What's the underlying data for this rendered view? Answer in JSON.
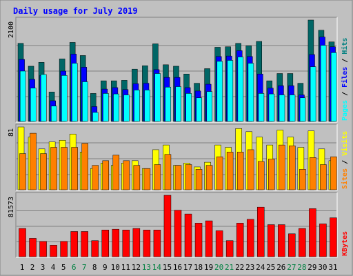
{
  "chart_data": {
    "type": "bar",
    "title": "Daily usage for July 2019",
    "categories": [
      "1",
      "2",
      "3",
      "4",
      "5",
      "6",
      "7",
      "8",
      "9",
      "10",
      "11",
      "12",
      "13",
      "14",
      "15",
      "16",
      "17",
      "18",
      "19",
      "20",
      "21",
      "22",
      "23",
      "24",
      "25",
      "26",
      "27",
      "28",
      "29",
      "30",
      "31"
    ],
    "weekend_days": [
      "6",
      "7",
      "13",
      "14",
      "20",
      "21",
      "27",
      "28"
    ],
    "panels": [
      {
        "id": "hits",
        "ymax_label": "2100",
        "ymax": 2100,
        "legend": [
          {
            "text": "Pages",
            "color": "#00ffff"
          },
          {
            "text": " / ",
            "color": "#000000"
          },
          {
            "text": "Files",
            "color": "#0000ff"
          },
          {
            "text": " / ",
            "color": "#000000"
          },
          {
            "text": "Hits",
            "color": "#008080"
          }
        ],
        "series": [
          {
            "name": "Hits",
            "color": "#006666",
            "values": [
              1620,
              1150,
              1230,
              620,
              1300,
              1640,
              1370,
              590,
              850,
              850,
              860,
              1090,
              1160,
              1610,
              1180,
              1150,
              990,
              800,
              1100,
              1540,
              1550,
              1620,
              1570,
              1660,
              850,
              1000,
              1000,
              800,
              2100,
              1890,
              1650
            ]
          },
          {
            "name": "Files",
            "color": "#0000ff",
            "values": [
              1290,
              880,
              960,
              440,
              1050,
              1400,
              1130,
              320,
              680,
              710,
              670,
              790,
              800,
              1080,
              920,
              920,
              710,
              640,
              780,
              1350,
              1360,
              1470,
              1350,
              990,
              700,
              750,
              750,
              560,
              1390,
              1750,
              1550
            ]
          },
          {
            "name": "Pages",
            "color": "#00ffff",
            "values": [
              1050,
              700,
              980,
              330,
              960,
              1210,
              830,
              200,
              590,
              580,
              560,
              660,
              660,
              1000,
              720,
              730,
              590,
              500,
              630,
              1250,
              1270,
              1340,
              1210,
              590,
              580,
              560,
              560,
              500,
              1140,
              1580,
              1430
            ]
          }
        ]
      },
      {
        "id": "visits",
        "ymax_label": "81",
        "ymax": 81,
        "legend": [
          {
            "text": "Sites",
            "color": "#ff8000"
          },
          {
            "text": " / ",
            "color": "#000000"
          },
          {
            "text": "Visits",
            "color": "#ffff00"
          }
        ],
        "series": [
          {
            "name": "Visits",
            "color": "#ffff00",
            "values": [
              81,
              68,
              53,
              62,
              64,
              72,
              49,
              28,
              35,
              32,
              35,
              38,
              28,
              52,
              58,
              32,
              35,
              30,
              36,
              58,
              55,
              79,
              75,
              68,
              58,
              77,
              68,
              55,
              76,
              53,
              38
            ]
          },
          {
            "name": "Sites",
            "color": "#ff8000",
            "values": [
              47,
              73,
              47,
              55,
              55,
              55,
              60,
              32,
              38,
              45,
              38,
              32,
              28,
              33,
              46,
              32,
              33,
              27,
              32,
              43,
              49,
              49,
              52,
              37,
              40,
              58,
              57,
              27,
              42,
              33,
              43
            ]
          }
        ]
      },
      {
        "id": "kbytes",
        "ymax_label": "81573",
        "ymax": 81573,
        "legend": [
          {
            "text": "KBytes",
            "color": "#ff0000"
          }
        ],
        "series": [
          {
            "name": "KBytes",
            "color": "#ff0000",
            "values": [
              38000,
              25000,
              21000,
              16000,
              21000,
              34000,
              34000,
              22000,
              36000,
              37000,
              36000,
              38000,
              36000,
              36000,
              81573,
              62000,
              57000,
              45000,
              48000,
              35000,
              22000,
              45000,
              50000,
              66000,
              43000,
              43000,
              31000,
              38000,
              64000,
              44000,
              52000
            ]
          }
        ]
      }
    ]
  }
}
